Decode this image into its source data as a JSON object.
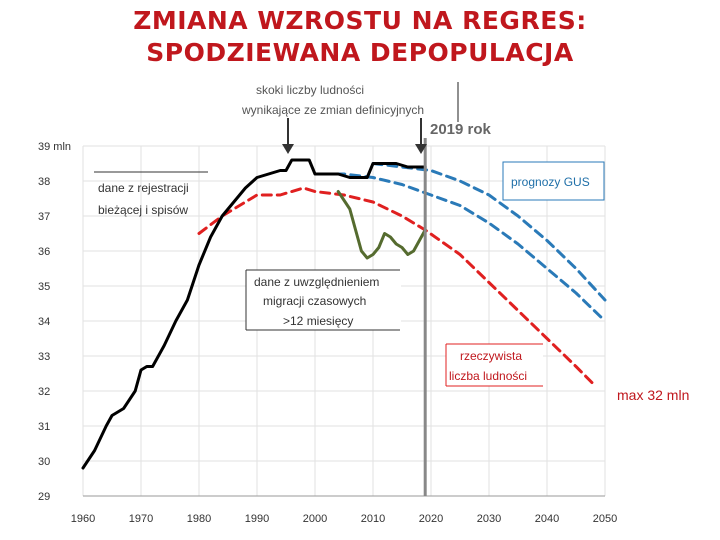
{
  "title": {
    "line1": "ZMIANA WZROSTU NA REGRES:",
    "line2": "SPODZIEWANA DEPOPULACJA"
  },
  "colors": {
    "title": "#c0171d",
    "registered": "#000000",
    "migration": "#556b2f",
    "gus_forecast": "#2a7ab8",
    "actual_forecast": "#e02020",
    "marker_line": "#888888"
  },
  "annotations": {
    "jumps_line1": "skoki liczby ludności",
    "jumps_line2": "wynikające ze zmian definicyjnych",
    "year_marker": "2019 rok",
    "registration_line1": "dane z rejestracji",
    "registration_line2": "bieżącej i spisów",
    "gus_label": "prognozy GUS",
    "migration_line1": "dane z uwzględnieniem",
    "migration_line2": "migracji czasowych",
    "migration_line3": ">12 miesięcy",
    "actual_line1": "rzeczywista",
    "actual_line2": "liczba ludności",
    "max_label": "max 32 mln"
  },
  "chart_data": {
    "type": "line",
    "xlim": [
      1960,
      2050
    ],
    "ylim": [
      29,
      39
    ],
    "x_ticks": [
      "1960",
      "1970",
      "1980",
      "1990",
      "2000",
      "2010",
      "2020",
      "2030",
      "2040",
      "2050"
    ],
    "y_ticks": [
      "39 mln",
      "38",
      "37",
      "36",
      "35",
      "34",
      "33",
      "32",
      "31",
      "30",
      "29"
    ],
    "grid": true,
    "marker_year": 2019,
    "series": [
      {
        "key": "registered",
        "style": "solid",
        "points": [
          [
            1960,
            29.8
          ],
          [
            1962,
            30.3
          ],
          [
            1964,
            31.0
          ],
          [
            1965,
            31.3
          ],
          [
            1967,
            31.5
          ],
          [
            1969,
            32.0
          ],
          [
            1970,
            32.6
          ],
          [
            1971,
            32.7
          ],
          [
            1972,
            32.7
          ],
          [
            1974,
            33.3
          ],
          [
            1976,
            34.0
          ],
          [
            1978,
            34.6
          ],
          [
            1980,
            35.6
          ],
          [
            1982,
            36.4
          ],
          [
            1984,
            37.0
          ],
          [
            1986,
            37.4
          ],
          [
            1988,
            37.8
          ],
          [
            1990,
            38.1
          ],
          [
            1992,
            38.2
          ],
          [
            1994,
            38.3
          ],
          [
            1995,
            38.3
          ],
          [
            1996,
            38.6
          ],
          [
            1997,
            38.6
          ],
          [
            1998,
            38.6
          ],
          [
            1999,
            38.6
          ],
          [
            2000,
            38.2
          ],
          [
            2002,
            38.2
          ],
          [
            2004,
            38.2
          ],
          [
            2006,
            38.1
          ],
          [
            2008,
            38.1
          ],
          [
            2009,
            38.1
          ],
          [
            2010,
            38.5
          ],
          [
            2012,
            38.5
          ],
          [
            2014,
            38.5
          ],
          [
            2016,
            38.4
          ],
          [
            2018,
            38.4
          ],
          [
            2019,
            38.4
          ]
        ]
      },
      {
        "key": "migration",
        "style": "solid",
        "points": [
          [
            2004,
            37.7
          ],
          [
            2006,
            37.2
          ],
          [
            2007,
            36.6
          ],
          [
            2008,
            36.0
          ],
          [
            2009,
            35.8
          ],
          [
            2010,
            35.9
          ],
          [
            2011,
            36.1
          ],
          [
            2012,
            36.5
          ],
          [
            2013,
            36.4
          ],
          [
            2014,
            36.2
          ],
          [
            2015,
            36.1
          ],
          [
            2016,
            35.9
          ],
          [
            2017,
            36.0
          ],
          [
            2018,
            36.3
          ],
          [
            2019,
            36.6
          ]
        ]
      },
      {
        "key": "gus_forecast",
        "style": "dashed",
        "points": [
          [
            2001,
            38.2
          ],
          [
            2005,
            38.2
          ],
          [
            2010,
            38.1
          ],
          [
            2015,
            37.9
          ],
          [
            2020,
            37.6
          ],
          [
            2025,
            37.3
          ],
          [
            2030,
            36.8
          ],
          [
            2035,
            36.2
          ],
          [
            2040,
            35.5
          ],
          [
            2045,
            34.8
          ],
          [
            2050,
            34.0
          ]
        ]
      },
      {
        "key": "gus_forecast",
        "style": "dashed",
        "points": [
          [
            2010,
            38.5
          ],
          [
            2015,
            38.4
          ],
          [
            2020,
            38.3
          ],
          [
            2025,
            38.0
          ],
          [
            2030,
            37.6
          ],
          [
            2035,
            37.0
          ],
          [
            2040,
            36.3
          ],
          [
            2045,
            35.5
          ],
          [
            2050,
            34.6
          ]
        ]
      },
      {
        "key": "actual_forecast",
        "style": "dashed",
        "points": [
          [
            1980,
            36.5
          ],
          [
            1984,
            37.0
          ],
          [
            1988,
            37.4
          ],
          [
            1990,
            37.6
          ],
          [
            1994,
            37.6
          ],
          [
            1998,
            37.8
          ],
          [
            2000,
            37.7
          ],
          [
            2005,
            37.6
          ],
          [
            2010,
            37.4
          ],
          [
            2015,
            37.0
          ],
          [
            2019,
            36.6
          ],
          [
            2025,
            35.9
          ],
          [
            2030,
            35.1
          ],
          [
            2035,
            34.3
          ],
          [
            2040,
            33.5
          ],
          [
            2045,
            32.7
          ],
          [
            2048,
            32.2
          ]
        ]
      }
    ]
  }
}
